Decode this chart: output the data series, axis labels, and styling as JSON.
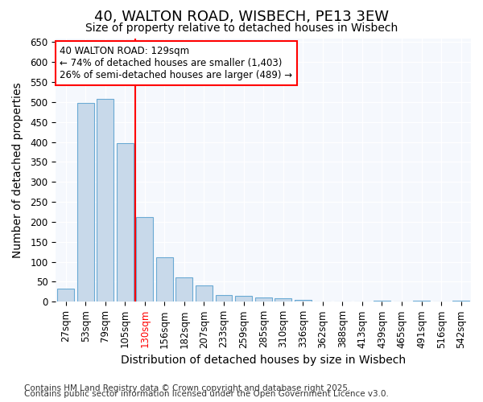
{
  "title1": "40, WALTON ROAD, WISBECH, PE13 3EW",
  "title2": "Size of property relative to detached houses in Wisbech",
  "xlabel": "Distribution of detached houses by size in Wisbech",
  "ylabel": "Number of detached properties",
  "categories": [
    "27sqm",
    "53sqm",
    "79sqm",
    "105sqm",
    "130sqm",
    "156sqm",
    "182sqm",
    "207sqm",
    "233sqm",
    "259sqm",
    "285sqm",
    "310sqm",
    "336sqm",
    "362sqm",
    "388sqm",
    "413sqm",
    "439sqm",
    "465sqm",
    "491sqm",
    "516sqm",
    "542sqm"
  ],
  "values": [
    33,
    497,
    508,
    397,
    213,
    112,
    62,
    40,
    17,
    14,
    10,
    8,
    5,
    1,
    1,
    1,
    3,
    0,
    2,
    0,
    3
  ],
  "bar_color": "#c8d9ea",
  "bar_edge_color": "#6aaad4",
  "highlighted_tick_index": 4,
  "highlighted_tick_color": "red",
  "annotation_line1": "40 WALTON ROAD: 129sqm",
  "annotation_line2": "← 74% of detached houses are smaller (1,403)",
  "annotation_line3": "26% of semi-detached houses are larger (489) →",
  "annotation_box_color": "white",
  "annotation_box_edge_color": "red",
  "vline_color": "red",
  "vline_x_index": 4,
  "ylim": [
    0,
    660
  ],
  "yticks": [
    0,
    50,
    100,
    150,
    200,
    250,
    300,
    350,
    400,
    450,
    500,
    550,
    600,
    650
  ],
  "bg_color": "#ffffff",
  "plot_bg_color": "#f5f8fd",
  "grid_color": "#ffffff",
  "title1_fontsize": 13,
  "title2_fontsize": 10,
  "axis_label_fontsize": 10,
  "tick_fontsize": 8.5,
  "annotation_fontsize": 8.5,
  "footer_fontsize": 7.5,
  "footer_line1": "Contains HM Land Registry data © Crown copyright and database right 2025.",
  "footer_line2": "Contains public sector information licensed under the Open Government Licence v3.0."
}
